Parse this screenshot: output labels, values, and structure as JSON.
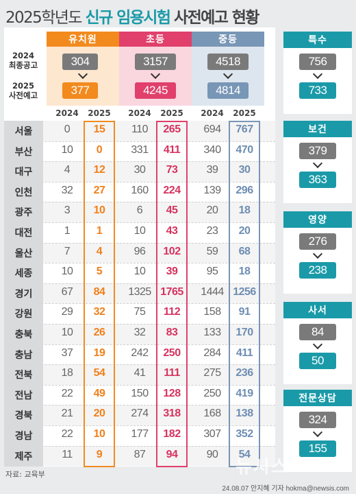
{
  "title": {
    "year": "2025학년도",
    "main": "신규 임용시험",
    "rest": "사전예고 현황"
  },
  "row_labels": {
    "final": "2024\n최종공고",
    "pre": "2025\n사전예고"
  },
  "groups": [
    {
      "key": "kinder",
      "name": "유치원",
      "final_2024": "304",
      "pre_2025": "377",
      "color": "#f28a1e"
    },
    {
      "key": "elem",
      "name": "초등",
      "final_2024": "3157",
      "pre_2025": "4245",
      "color": "#e0406b"
    },
    {
      "key": "middle",
      "name": "중등",
      "final_2024": "4518",
      "pre_2025": "4814",
      "color": "#7896b6"
    }
  ],
  "year_labels": [
    "2024",
    "2025"
  ],
  "chart_data": {
    "type": "table",
    "title": "2025학년도 신규 임용시험 사전예고 현황",
    "columns": [
      "유치원 2024",
      "유치원 2025",
      "초등 2024",
      "초등 2025",
      "중등 2024",
      "중등 2025"
    ],
    "rows": [
      {
        "region": "서울",
        "values": [
          0,
          15,
          110,
          265,
          694,
          767
        ]
      },
      {
        "region": "부산",
        "values": [
          10,
          0,
          331,
          411,
          340,
          470
        ]
      },
      {
        "region": "대구",
        "values": [
          4,
          12,
          30,
          73,
          39,
          30
        ]
      },
      {
        "region": "인천",
        "values": [
          32,
          27,
          160,
          224,
          139,
          296
        ]
      },
      {
        "region": "광주",
        "values": [
          3,
          10,
          6,
          45,
          20,
          18
        ]
      },
      {
        "region": "대전",
        "values": [
          1,
          1,
          10,
          43,
          23,
          20
        ]
      },
      {
        "region": "울산",
        "values": [
          7,
          4,
          96,
          102,
          59,
          68
        ]
      },
      {
        "region": "세종",
        "values": [
          10,
          5,
          10,
          39,
          95,
          18
        ]
      },
      {
        "region": "경기",
        "values": [
          67,
          84,
          1325,
          1765,
          1444,
          1256
        ]
      },
      {
        "region": "강원",
        "values": [
          29,
          32,
          75,
          112,
          158,
          91
        ]
      },
      {
        "region": "충북",
        "values": [
          10,
          26,
          32,
          83,
          133,
          170
        ]
      },
      {
        "region": "충남",
        "values": [
          37,
          19,
          242,
          250,
          284,
          411
        ]
      },
      {
        "region": "전북",
        "values": [
          18,
          54,
          41,
          111,
          275,
          236
        ]
      },
      {
        "region": "전남",
        "values": [
          22,
          49,
          150,
          128,
          250,
          419
        ]
      },
      {
        "region": "경북",
        "values": [
          21,
          20,
          274,
          318,
          168,
          138
        ]
      },
      {
        "region": "경남",
        "values": [
          22,
          10,
          177,
          182,
          307,
          352
        ]
      },
      {
        "region": "제주",
        "values": [
          11,
          9,
          87,
          94,
          90,
          54
        ]
      }
    ]
  },
  "special": [
    {
      "name": "특수",
      "final_2024": "756",
      "pre_2025": "733"
    },
    {
      "name": "보건",
      "final_2024": "379",
      "pre_2025": "363"
    },
    {
      "name": "영양",
      "final_2024": "276",
      "pre_2025": "238"
    },
    {
      "name": "사서",
      "final_2024": "84",
      "pre_2025": "50"
    },
    {
      "name": "전문상담",
      "final_2024": "324",
      "pre_2025": "155"
    }
  ],
  "source": "자료: 교육부",
  "credit": "24.08.07 안지혜 기자 hokma@newsis.com",
  "watermark": "뉴시스"
}
